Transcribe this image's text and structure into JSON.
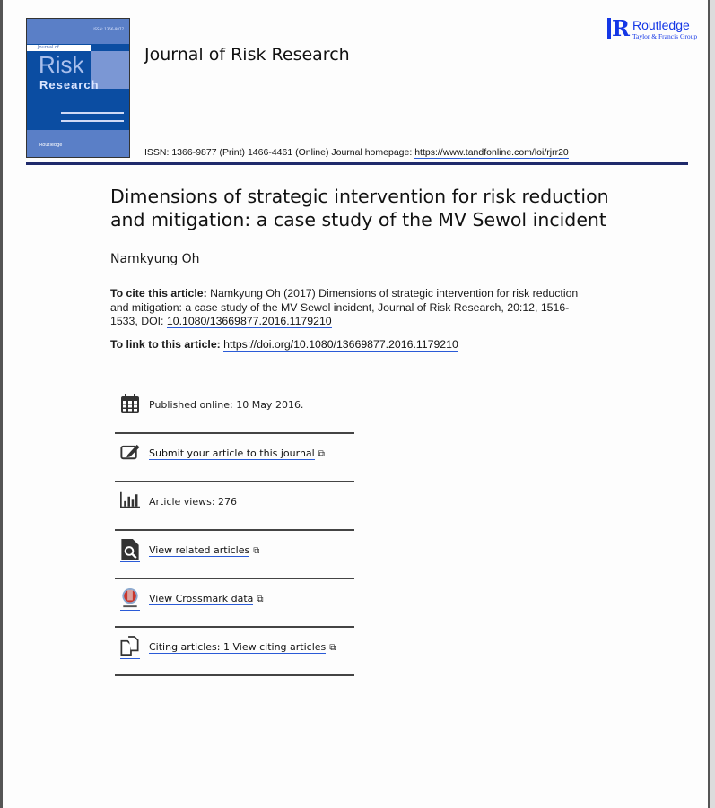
{
  "journal": {
    "title": "Journal of Risk Research",
    "issn_line": "ISSN: 1366-9877 (Print) 1466-4461 (Online) Journal homepage: ",
    "homepage": "https://www.tandfonline.com/loi/rjrr20"
  },
  "cover": {
    "issn": "ISSN: 1366-9877",
    "journal_of": "Journal of",
    "risk": "Risk",
    "research": "Research",
    "publisher": "Routledge"
  },
  "publisher": {
    "name": "Routledge",
    "group": "Taylor & Francis Group",
    "color": "#1437e6"
  },
  "article": {
    "title": "Dimensions of strategic intervention for risk reduction and mitigation: a case study of the MV Sewol incident",
    "author": "Namkyung Oh"
  },
  "cite": {
    "label": "To cite this article:",
    "text": " Namkyung Oh (2017) Dimensions of strategic intervention for risk reduction and mitigation: a case study of the MV Sewol incident, Journal of Risk Research, 20:12, 1516-1533, DOI: ",
    "doi": "10.1080/13669877.2016.1179210"
  },
  "link": {
    "label": "To link to this article: ",
    "url": "https://doi.org/10.1080/13669877.2016.1179210"
  },
  "items": [
    {
      "icon": "calendar-icon",
      "text": "Published online: 10 May 2016."
    },
    {
      "icon": "edit-icon",
      "text": "Submit your article to this journal"
    },
    {
      "icon": "bar-chart-icon",
      "text": "Article views: 276"
    },
    {
      "icon": "search-document-icon",
      "text": "View related articles"
    },
    {
      "icon": "crossmark-icon",
      "text": "View Crossmark data"
    },
    {
      "icon": "citing-documents-icon",
      "text": "Citing articles: 1 View citing articles"
    }
  ]
}
